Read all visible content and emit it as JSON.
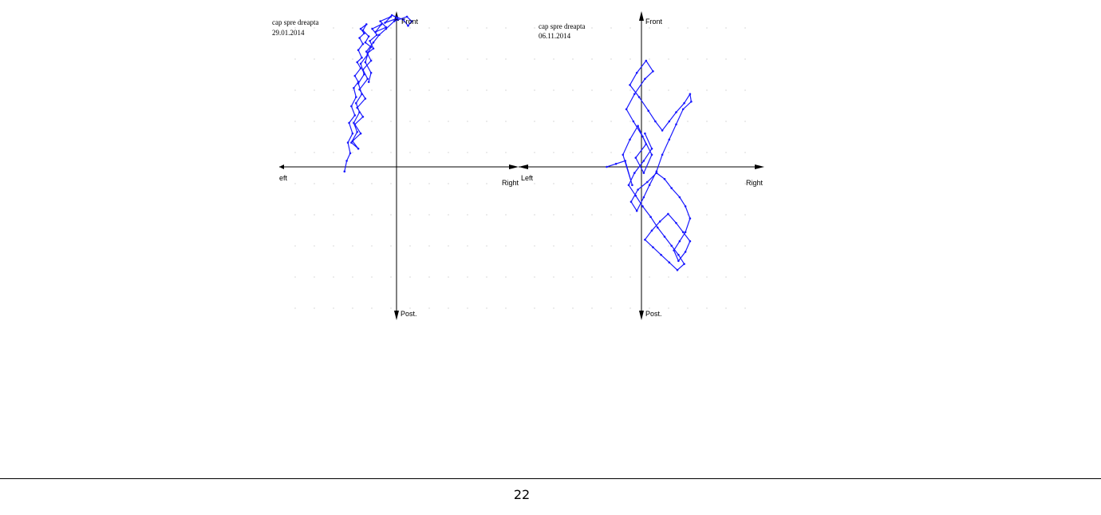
{
  "colors": {
    "trace": "#1a1aff",
    "axis": "#000000",
    "grid": "#bdbdbd"
  },
  "charts": [
    {
      "title": "cap spre dreapta",
      "date": "29.01.2014"
    },
    {
      "title": "cap spre dreapta",
      "date": "06.11.2014"
    }
  ],
  "chart_data": [
    {
      "type": "line",
      "title": "cap spre dreapta",
      "subtitle": "29.01.2014",
      "axis_labels": {
        "front": "Front",
        "posterior": "Post.",
        "left": "eft",
        "right": "Right"
      },
      "grid": true,
      "xlim": [
        -10,
        10
      ],
      "ylim": [
        -10,
        10
      ],
      "series": [
        {
          "x": [
            -4.5,
            -4.3,
            -4.0,
            -4.2,
            -3.8,
            -4.1,
            -3.6,
            -3.9,
            -3.5,
            -3.7,
            -3.3,
            -3.6,
            -3.1,
            -3.4,
            -3.0,
            -3.3,
            -2.9,
            -3.2,
            -2.8,
            -3.1,
            -2.6,
            -2.9,
            -2.4,
            -2.7,
            -2.2,
            -2.5,
            -2.0,
            -2.3,
            -1.7,
            -2.1,
            -1.3,
            -1.8,
            -0.9,
            -1.4,
            -0.5,
            -1.0,
            0.1,
            -0.4,
            0.6,
            1.0,
            1.3,
            0.9,
            -0.2,
            -0.9,
            -1.5,
            -2.0,
            -2.6,
            -2.2,
            -2.9,
            -2.5,
            -3.2,
            -2.7,
            -3.4,
            -2.9,
            -3.6,
            -3.1,
            -3.8,
            -3.3,
            -3.9,
            -3.4,
            -3.7,
            -3.2,
            -3.5,
            -3.0,
            -3.3,
            -2.8,
            -3.1,
            -2.5,
            -2.7,
            -2.2,
            -2.4
          ],
          "y": [
            -0.3,
            0.4,
            0.9,
            1.6,
            2.2,
            2.9,
            3.4,
            4.0,
            4.6,
            5.2,
            5.6,
            6.0,
            6.5,
            6.9,
            7.2,
            7.7,
            8.1,
            8.5,
            8.8,
            9.1,
            9.4,
            9.0,
            8.6,
            8.2,
            7.9,
            7.5,
            7.8,
            8.3,
            8.7,
            9.1,
            9.4,
            8.9,
            9.2,
            9.6,
            9.9,
            9.5,
            9.8,
            10.0,
            9.7,
            9.3,
            9.6,
            9.9,
            9.6,
            9.1,
            8.7,
            8.2,
            7.6,
            7.0,
            6.4,
            5.8,
            5.1,
            4.5,
            3.9,
            3.3,
            2.8,
            2.2,
            1.7,
            1.2,
            1.6,
            2.3,
            2.9,
            3.6,
            4.2,
            4.8,
            5.5,
            6.1,
            6.8,
            7.4,
            6.9,
            6.2,
            5.6
          ]
        }
      ]
    },
    {
      "type": "line",
      "title": "cap spre dreapta",
      "subtitle": "06.11.2014",
      "axis_labels": {
        "front": "Front",
        "posterior": "Post.",
        "left": "Left",
        "right": "Right"
      },
      "grid": true,
      "xlim": [
        -10,
        10
      ],
      "ylim": [
        -10,
        10
      ],
      "series": [
        {
          "x": [
            -3.0,
            -2.2,
            -1.4,
            -0.8,
            -1.6,
            -1.0,
            -0.3,
            0.4,
            -0.5,
            0.2,
            0.9,
            0.1,
            -0.7,
            -1.3,
            -0.6,
            0.3,
            1.0,
            0.4,
            -0.4,
            -1.0,
            -0.2,
            0.6,
            1.2,
            1.8,
            2.4,
            3.0,
            3.7,
            4.2,
            4.3,
            3.6,
            3.0,
            2.4,
            1.8,
            1.3,
            0.7,
            0.2,
            -0.4,
            -0.9,
            -0.3,
            0.5,
            1.3,
            2.0,
            2.6,
            3.3,
            3.8,
            4.2,
            3.8,
            3.3,
            2.8,
            3.2,
            3.8,
            4.2,
            3.6,
            3.0,
            2.3,
            1.6,
            0.9,
            0.3,
            1.0,
            1.7,
            2.4,
            3.1,
            3.7,
            3.2,
            2.6,
            2.0,
            1.4,
            0.8,
            0.1,
            -0.5,
            -1.1,
            -0.6,
            0.2,
            0.9,
            0.3
          ],
          "y": [
            0.0,
            0.2,
            0.4,
            -1.2,
            0.8,
            1.8,
            2.7,
            1.5,
            0.6,
            -0.4,
            0.8,
            2.0,
            3.0,
            3.8,
            4.8,
            5.8,
            6.3,
            7.0,
            6.2,
            5.4,
            4.6,
            3.7,
            3.0,
            2.4,
            3.0,
            3.6,
            4.2,
            4.8,
            4.3,
            3.8,
            2.8,
            1.8,
            0.8,
            -0.3,
            -1.2,
            -2.0,
            -2.9,
            -2.3,
            -1.5,
            -1.0,
            -0.4,
            -0.8,
            -1.4,
            -2.0,
            -2.6,
            -3.4,
            -4.3,
            -4.9,
            -5.5,
            -6.2,
            -5.6,
            -4.9,
            -4.3,
            -3.7,
            -3.1,
            -3.6,
            -4.2,
            -4.8,
            -5.3,
            -5.8,
            -6.3,
            -6.8,
            -6.4,
            -5.8,
            -5.2,
            -4.6,
            -4.0,
            -3.3,
            -2.6,
            -1.9,
            -1.2,
            -0.4,
            0.4,
            1.2,
            2.2
          ]
        }
      ]
    }
  ],
  "footer": {
    "page_number": "22"
  }
}
